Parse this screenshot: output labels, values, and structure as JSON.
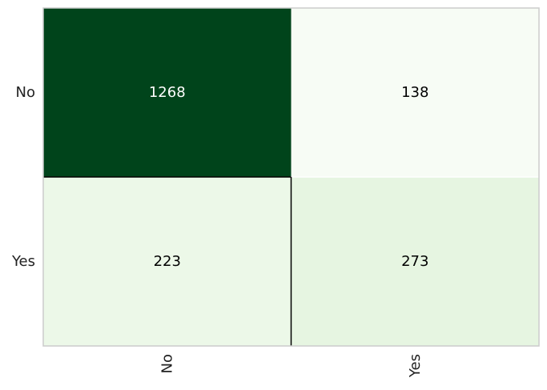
{
  "chart_data": {
    "type": "heatmap",
    "title": "",
    "xlabel": "",
    "ylabel": "",
    "x_categories": [
      "No",
      "Yes"
    ],
    "y_categories": [
      "No",
      "Yes"
    ],
    "values": [
      [
        1268,
        138
      ],
      [
        223,
        273
      ]
    ],
    "value_labels": [
      [
        "1268",
        "138"
      ],
      [
        "223",
        "273"
      ]
    ],
    "colormap": {
      "low": "#f7fcf5",
      "high": "#00441b"
    },
    "grid": false,
    "colorbar": false
  }
}
